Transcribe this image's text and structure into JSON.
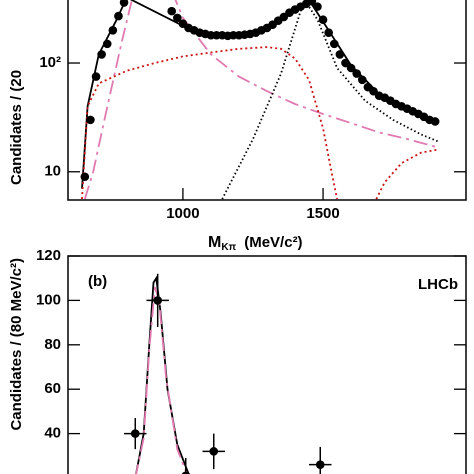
{
  "chart_data": [
    {
      "type": "errorbar",
      "log_y": true,
      "ylabel": "Candidates / (20",
      "xlabel": "M",
      "xlabel_sub": "Kπ",
      "xlabel_unit": "(MeV/c²)",
      "xlim": [
        590,
        2010
      ],
      "xticks": [
        1000,
        1500
      ],
      "ylim": [
        5.5,
        500
      ],
      "yticks": [
        10,
        {
          "value": 100,
          "label": "10²"
        }
      ],
      "points": {
        "color": "#000000",
        "x": [
          650,
          670,
          690,
          710,
          730,
          750,
          770,
          790,
          960,
          980,
          1000,
          1020,
          1040,
          1060,
          1080,
          1100,
          1120,
          1140,
          1160,
          1180,
          1200,
          1220,
          1240,
          1260,
          1280,
          1300,
          1320,
          1340,
          1360,
          1380,
          1400,
          1420,
          1440,
          1460,
          1480,
          1500,
          1520,
          1540,
          1560,
          1580,
          1600,
          1620,
          1640,
          1660,
          1680,
          1700,
          1720,
          1740,
          1760,
          1780,
          1800,
          1820,
          1840,
          1860,
          1880,
          1900
        ],
        "values": [
          9,
          30,
          75,
          120,
          150,
          200,
          270,
          360,
          300,
          260,
          230,
          210,
          200,
          190,
          185,
          180,
          180,
          180,
          178,
          180,
          180,
          182,
          185,
          190,
          200,
          210,
          225,
          245,
          265,
          290,
          310,
          330,
          350,
          370,
          330,
          250,
          190,
          150,
          120,
          100,
          90,
          80,
          70,
          60,
          55,
          50,
          48,
          45,
          42,
          40,
          38,
          36,
          34,
          32,
          30,
          29
        ]
      },
      "curves": [
        {
          "color": "#000000",
          "dash": "",
          "x": [
            640,
            660,
            700,
            760,
            800,
            1000,
            1100,
            1200,
            1300,
            1400,
            1450,
            1500,
            1600,
            1700,
            1800,
            1900
          ],
          "values": [
            7,
            40,
            120,
            240,
            400,
            220,
            180,
            180,
            210,
            310,
            380,
            240,
            95,
            52,
            38,
            30
          ]
        },
        {
          "color": "#e07ab0",
          "dash": "14 5 3 5",
          "x": [
            650,
            680,
            720,
            780,
            820,
            970,
            1000,
            1100,
            1200,
            1300,
            1400,
            1500,
            1600,
            1700,
            1800,
            1900
          ],
          "values": [
            5.6,
            10,
            30,
            150,
            400,
            400,
            260,
            120,
            75,
            55,
            42,
            34,
            28,
            23,
            20,
            17
          ]
        },
        {
          "color": "#cc1111",
          "dash": "2 3",
          "x": [
            640,
            660,
            700,
            800,
            900,
            1000,
            1100,
            1200,
            1300,
            1350,
            1400,
            1450,
            1500,
            1530,
            1550,
            1620,
            1690,
            1720,
            1780,
            1850,
            1910
          ],
          "values": [
            5.6,
            40,
            65,
            85,
            100,
            115,
            125,
            135,
            140,
            135,
            110,
            70,
            25,
            10,
            5.6,
            null,
            5.6,
            8,
            12,
            15,
            16
          ]
        },
        {
          "color": "#000000",
          "dash": "1.5 2.5",
          "x": [
            1140,
            1250,
            1350,
            1420,
            1440,
            1480,
            1550,
            1650,
            1750,
            1850,
            1910
          ],
          "values": [
            5.6,
            20,
            80,
            300,
            360,
            250,
            90,
            45,
            30,
            22,
            19
          ]
        }
      ]
    },
    {
      "type": "errorbar",
      "log_y": false,
      "ylabel": "Candidates / (80 MeV/c²)",
      "panel": "(b)",
      "experiment": "LHCb",
      "xlim": [
        590,
        2010
      ],
      "ylim": [
        20,
        120
      ],
      "yticks": [
        40,
        60,
        80,
        100,
        120
      ],
      "points": {
        "color": "#000000",
        "x": [
          830,
          910,
          1010,
          1110,
          1490
        ],
        "xerr": [
          40,
          40,
          40,
          40,
          40
        ],
        "values": [
          40,
          100,
          21,
          32,
          26
        ],
        "errors": [
          7,
          12,
          8,
          8,
          8
        ]
      },
      "curves": [
        {
          "color": "#000000",
          "dash": "",
          "x": [
            830,
            860,
            880,
            895,
            905,
            920,
            945,
            980,
            1020,
            1040
          ],
          "values": [
            20,
            40,
            80,
            108,
            110,
            95,
            60,
            35,
            22,
            20
          ]
        },
        {
          "color": "#e07ab0",
          "dash": "14 5 3 5",
          "x": [
            830,
            860,
            880,
            900,
            915,
            940,
            980,
            1020
          ],
          "values": [
            20,
            38,
            78,
            106,
            100,
            65,
            33,
            20
          ]
        }
      ]
    }
  ]
}
